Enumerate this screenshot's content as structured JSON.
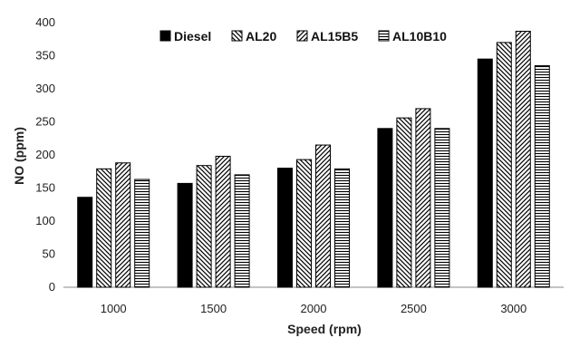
{
  "chart_data": {
    "type": "bar",
    "title": "",
    "xlabel": "Speed (rpm)",
    "ylabel": "NO (ppm)",
    "categories": [
      "1000",
      "1500",
      "2000",
      "2500",
      "3000"
    ],
    "ylim": [
      0,
      400
    ],
    "yticks": [
      0,
      50,
      100,
      150,
      200,
      250,
      300,
      350,
      400
    ],
    "grid": false,
    "legend_position": "top",
    "series": [
      {
        "name": "Diesel",
        "pattern": "solid-black",
        "values": [
          136,
          157,
          180,
          240,
          345
        ]
      },
      {
        "name": "AL20",
        "pattern": "backslash-hatch",
        "values": [
          179,
          184,
          193,
          256,
          370
        ]
      },
      {
        "name": "AL15B5",
        "pattern": "slash-hatch",
        "values": [
          188,
          198,
          215,
          270,
          387
        ]
      },
      {
        "name": "AL10B10",
        "pattern": "horizontal-lines",
        "values": [
          163,
          170,
          179,
          240,
          335
        ]
      }
    ]
  }
}
